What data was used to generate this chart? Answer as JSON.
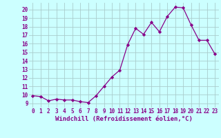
{
  "x": [
    0,
    1,
    2,
    3,
    4,
    5,
    6,
    7,
    8,
    9,
    10,
    11,
    12,
    13,
    14,
    15,
    16,
    17,
    18,
    19,
    20,
    21,
    22,
    23
  ],
  "y": [
    9.9,
    9.8,
    9.3,
    9.5,
    9.4,
    9.4,
    9.2,
    9.1,
    9.9,
    11.0,
    12.1,
    12.9,
    15.9,
    17.8,
    17.1,
    18.5,
    17.4,
    19.2,
    20.3,
    20.2,
    18.2,
    16.4,
    16.4,
    14.8
  ],
  "line_color": "#880088",
  "marker": "D",
  "marker_size": 2.2,
  "bg_color": "#ccffff",
  "grid_color": "#aacccc",
  "xlabel": "Windchill (Refroidissement éolien,°C)",
  "xlim": [
    -0.5,
    23.5
  ],
  "ylim": [
    8.5,
    20.8
  ],
  "yticks": [
    9,
    10,
    11,
    12,
    13,
    14,
    15,
    16,
    17,
    18,
    19,
    20
  ],
  "xticks": [
    0,
    1,
    2,
    3,
    4,
    5,
    6,
    7,
    8,
    9,
    10,
    11,
    12,
    13,
    14,
    15,
    16,
    17,
    18,
    19,
    20,
    21,
    22,
    23
  ],
  "tick_label_color": "#880088",
  "xlabel_color": "#880088",
  "tick_fontsize": 5.5,
  "xlabel_fontsize": 6.5
}
